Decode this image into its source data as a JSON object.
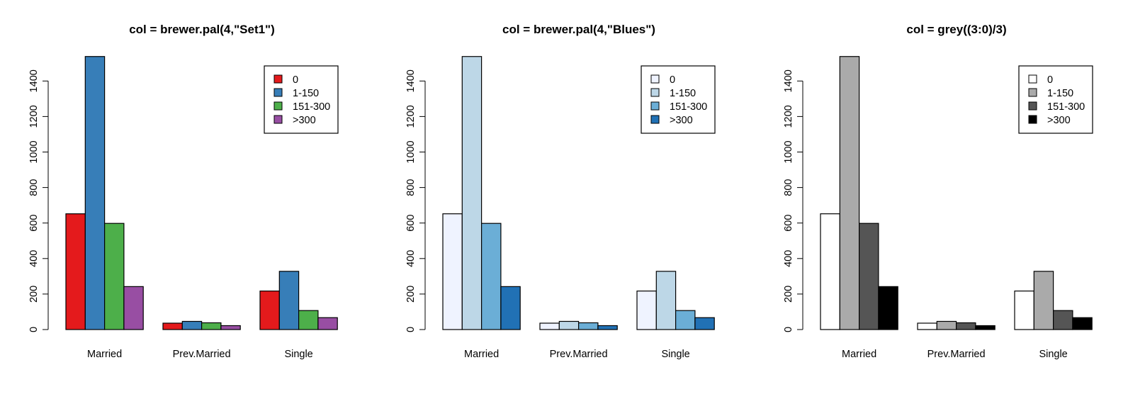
{
  "chart_data": [
    {
      "type": "bar",
      "title": "col = brewer.pal(4,\"Set1\")",
      "xlabel": "",
      "ylabel": "",
      "categories": [
        "Married",
        "Prev.Married",
        "Single"
      ],
      "series": [
        {
          "name": "0",
          "values": [
            652,
            36,
            217
          ],
          "color": "#E41A1C"
        },
        {
          "name": "1-150",
          "values": [
            1538,
            46,
            328
          ],
          "color": "#377EB8"
        },
        {
          "name": "151-300",
          "values": [
            598,
            38,
            107
          ],
          "color": "#4DAF4A"
        },
        {
          "name": ">300",
          "values": [
            242,
            22,
            67
          ],
          "color": "#984EA3"
        }
      ],
      "ylim": [
        0,
        1538
      ],
      "yticks": [
        "0",
        "200",
        "400",
        "600",
        "800",
        "1000",
        "1200",
        "1400"
      ],
      "legend_position": "top-right",
      "grid": false
    },
    {
      "type": "bar",
      "title": "col = brewer.pal(4,\"Blues\")",
      "xlabel": "",
      "ylabel": "",
      "categories": [
        "Married",
        "Prev.Married",
        "Single"
      ],
      "series": [
        {
          "name": "0",
          "values": [
            652,
            36,
            217
          ],
          "color": "#EFF3FF"
        },
        {
          "name": "1-150",
          "values": [
            1538,
            46,
            328
          ],
          "color": "#BDD7E7"
        },
        {
          "name": "151-300",
          "values": [
            598,
            38,
            107
          ],
          "color": "#6BAED6"
        },
        {
          "name": ">300",
          "values": [
            242,
            22,
            67
          ],
          "color": "#2171B5"
        }
      ],
      "ylim": [
        0,
        1538
      ],
      "yticks": [
        "0",
        "200",
        "400",
        "600",
        "800",
        "1000",
        "1200",
        "1400"
      ],
      "legend_position": "top-right",
      "grid": false
    },
    {
      "type": "bar",
      "title": "col = grey((3:0)/3)",
      "xlabel": "",
      "ylabel": "",
      "categories": [
        "Married",
        "Prev.Married",
        "Single"
      ],
      "series": [
        {
          "name": "0",
          "values": [
            652,
            36,
            217
          ],
          "color": "#FFFFFF"
        },
        {
          "name": "1-150",
          "values": [
            1538,
            46,
            328
          ],
          "color": "#AAAAAA"
        },
        {
          "name": "151-300",
          "values": [
            598,
            38,
            107
          ],
          "color": "#555555"
        },
        {
          "name": ">300",
          "values": [
            242,
            22,
            67
          ],
          "color": "#000000"
        }
      ],
      "ylim": [
        0,
        1538
      ],
      "yticks": [
        "0",
        "200",
        "400",
        "600",
        "800",
        "1000",
        "1200",
        "1400"
      ],
      "legend_position": "top-right",
      "grid": false
    }
  ]
}
